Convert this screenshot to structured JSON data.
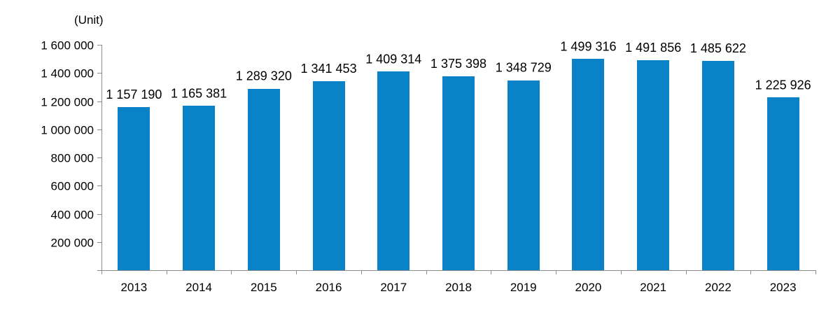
{
  "chart_data": {
    "type": "bar",
    "ylabel": "(Unit)",
    "categories": [
      "2013",
      "2014",
      "2015",
      "2016",
      "2017",
      "2018",
      "2019",
      "2020",
      "2021",
      "2022",
      "2023"
    ],
    "values": [
      1157190,
      1165381,
      1289320,
      1341453,
      1409314,
      1375398,
      1348729,
      1499316,
      1491856,
      1485622,
      1225926
    ],
    "value_labels": [
      "1 157 190",
      "1 165 381",
      "1 289 320",
      "1 341 453",
      "1 409 314",
      "1 375 398",
      "1 348 729",
      "1 499 316",
      "1 491 856",
      "1 485 622",
      "1 225 926"
    ],
    "yticks": [
      200000,
      400000,
      600000,
      800000,
      1000000,
      1200000,
      1400000,
      1600000
    ],
    "ytick_labels": [
      "200 000",
      "400 000",
      "600 000",
      "800 000",
      "1 000 000",
      "1 200 000",
      "1 400 000",
      "1 600 000"
    ],
    "ylim": [
      0,
      1600000
    ],
    "grid": false,
    "legend": "none",
    "bar_color": "#0a82c8"
  }
}
